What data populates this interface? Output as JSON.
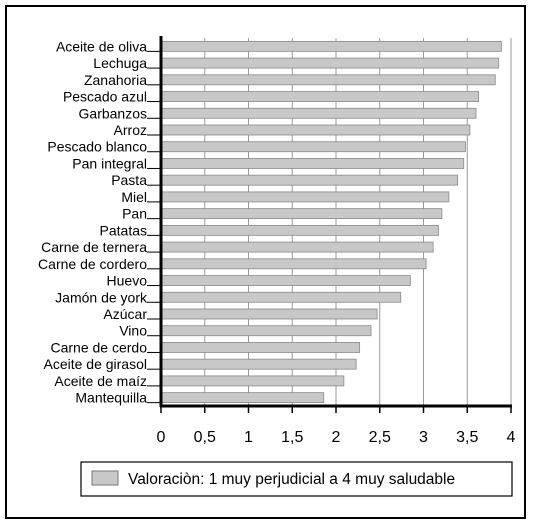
{
  "chart_data": {
    "type": "bar",
    "orientation": "horizontal",
    "categories": [
      "Aceite de oliva",
      "Lechuga",
      "Zanahoria",
      "Pescado azul",
      "Garbanzos",
      "Arroz",
      "Pescado blanco",
      "Pan integral",
      "Pasta",
      "Miel",
      "Pan",
      "Patatas",
      "Carne de ternera",
      "Carne de cordero",
      "Huevo",
      "Jamón de york",
      "Azúcar",
      "Vino",
      "Carne de cerdo",
      "Aceite de girasol",
      "Aceite de maíz",
      "Mantequilla"
    ],
    "series": [
      {
        "name": "Valoraciòn: 1 muy perjudicial a 4 muy saludable",
        "values": [
          3.89,
          3.86,
          3.82,
          3.63,
          3.6,
          3.53,
          3.48,
          3.46,
          3.39,
          3.29,
          3.21,
          3.17,
          3.11,
          3.03,
          2.85,
          2.74,
          2.47,
          2.4,
          2.27,
          2.23,
          2.09,
          1.86
        ]
      }
    ],
    "xticks": [
      "0",
      "0,5",
      "1",
      "1,5",
      "2",
      "2,5",
      "3",
      "3,5",
      "4"
    ],
    "xlim": [
      0,
      4
    ],
    "grid": "vertical",
    "legend": "bottom",
    "bar_color": "#c8c8c8"
  }
}
